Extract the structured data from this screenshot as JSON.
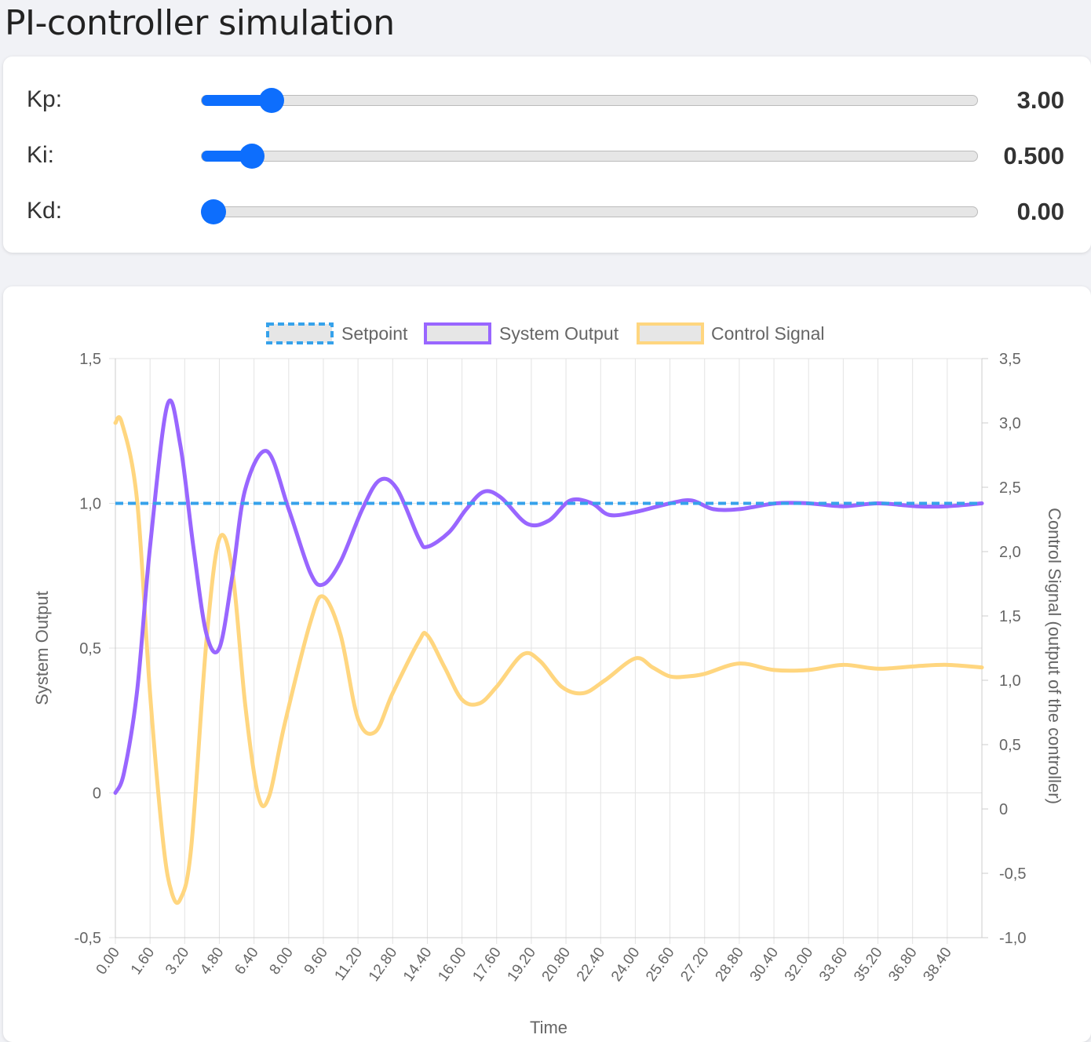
{
  "page": {
    "title": "PI-controller simulation"
  },
  "sliders": [
    {
      "label": "Kp:",
      "value_text": "3.00",
      "fraction": 0.09
    },
    {
      "label": "Ki:",
      "value_text": "0.500",
      "fraction": 0.065
    },
    {
      "label": "Kd:",
      "value_text": "0.00",
      "fraction": 0.015
    }
  ],
  "colors": {
    "setpoint": "#36a2eb",
    "output": "#9966ff",
    "control": "#ffd67f",
    "accent": "#0d6efd"
  },
  "chart_data": {
    "type": "line",
    "legend_position": "top",
    "xlabel": "Time",
    "ylabel_left": "System Output",
    "ylabel_right": "Control Signal (output of the controller)",
    "x_range": [
      0,
      40
    ],
    "x_tick_labels": [
      "0.00",
      "1.60",
      "3.20",
      "4.80",
      "6.40",
      "8.00",
      "9.60",
      "11.20",
      "12.80",
      "14.40",
      "16.00",
      "17.60",
      "19.20",
      "20.80",
      "22.40",
      "24.00",
      "25.60",
      "27.20",
      "28.80",
      "30.40",
      "32.00",
      "33.60",
      "35.20",
      "36.80",
      "38.40"
    ],
    "y_left": {
      "range": [
        -0.5,
        1.5
      ],
      "ticks": [
        -0.5,
        0,
        0.5,
        1.0,
        1.5
      ],
      "tick_labels": [
        "-0,5",
        "0",
        "0,5",
        "1,0",
        "1,5"
      ]
    },
    "y_right": {
      "range": [
        -1.0,
        3.5
      ],
      "ticks": [
        -1.0,
        -0.5,
        0,
        0.5,
        1.0,
        1.5,
        2.0,
        2.5,
        3.0,
        3.5
      ],
      "tick_labels": [
        "-1,0",
        "-0,5",
        "0",
        "0,5",
        "1,0",
        "1,5",
        "2,0",
        "2,5",
        "3,0",
        "3,5"
      ]
    },
    "series": [
      {
        "name": "Setpoint",
        "axis": "left",
        "style": "dashed",
        "points": [
          [
            0,
            1.0
          ],
          [
            40,
            1.0
          ]
        ]
      },
      {
        "name": "System Output",
        "axis": "left",
        "points": [
          [
            0,
            0.0
          ],
          [
            0.4,
            0.07
          ],
          [
            1.0,
            0.35
          ],
          [
            1.6,
            0.85
          ],
          [
            2.4,
            1.34
          ],
          [
            3.0,
            1.2
          ],
          [
            3.6,
            0.85
          ],
          [
            4.2,
            0.55
          ],
          [
            4.8,
            0.5
          ],
          [
            5.4,
            0.75
          ],
          [
            6.0,
            1.05
          ],
          [
            7.0,
            1.18
          ],
          [
            8.0,
            0.98
          ],
          [
            9.0,
            0.76
          ],
          [
            9.6,
            0.72
          ],
          [
            10.4,
            0.8
          ],
          [
            11.4,
            0.98
          ],
          [
            12.2,
            1.08
          ],
          [
            13.0,
            1.05
          ],
          [
            14.0,
            0.88
          ],
          [
            14.4,
            0.85
          ],
          [
            15.4,
            0.9
          ],
          [
            16.2,
            0.98
          ],
          [
            17.0,
            1.04
          ],
          [
            17.8,
            1.02
          ],
          [
            19.0,
            0.93
          ],
          [
            20.0,
            0.94
          ],
          [
            21.0,
            1.01
          ],
          [
            22.0,
            1.0
          ],
          [
            22.8,
            0.96
          ],
          [
            24.0,
            0.97
          ],
          [
            25.6,
            1.0
          ],
          [
            26.6,
            1.01
          ],
          [
            27.6,
            0.98
          ],
          [
            28.8,
            0.98
          ],
          [
            30.5,
            1.0
          ],
          [
            32.0,
            1.0
          ],
          [
            33.6,
            0.99
          ],
          [
            35.2,
            1.0
          ],
          [
            37.0,
            0.99
          ],
          [
            38.4,
            0.99
          ],
          [
            40,
            1.0
          ]
        ]
      },
      {
        "name": "Control Signal",
        "axis": "right",
        "points": [
          [
            0,
            3.0
          ],
          [
            0.3,
            3.0
          ],
          [
            1.0,
            2.4
          ],
          [
            1.6,
            0.9
          ],
          [
            2.2,
            -0.25
          ],
          [
            2.6,
            -0.65
          ],
          [
            3.0,
            -0.7
          ],
          [
            3.5,
            -0.3
          ],
          [
            4.2,
            1.3
          ],
          [
            4.8,
            2.1
          ],
          [
            5.4,
            1.85
          ],
          [
            6.0,
            0.8
          ],
          [
            6.6,
            0.1
          ],
          [
            7.1,
            0.1
          ],
          [
            7.8,
            0.65
          ],
          [
            9.0,
            1.45
          ],
          [
            9.6,
            1.65
          ],
          [
            10.4,
            1.35
          ],
          [
            11.2,
            0.7
          ],
          [
            12.0,
            0.6
          ],
          [
            12.8,
            0.9
          ],
          [
            14.0,
            1.3
          ],
          [
            14.4,
            1.35
          ],
          [
            15.2,
            1.1
          ],
          [
            16.0,
            0.85
          ],
          [
            16.8,
            0.82
          ],
          [
            17.6,
            0.95
          ],
          [
            18.8,
            1.2
          ],
          [
            19.6,
            1.15
          ],
          [
            20.6,
            0.95
          ],
          [
            21.6,
            0.9
          ],
          [
            22.6,
            1.0
          ],
          [
            24.0,
            1.17
          ],
          [
            24.8,
            1.1
          ],
          [
            25.6,
            1.03
          ],
          [
            26.4,
            1.03
          ],
          [
            27.2,
            1.05
          ],
          [
            28.8,
            1.13
          ],
          [
            30.4,
            1.08
          ],
          [
            32.0,
            1.08
          ],
          [
            33.6,
            1.12
          ],
          [
            35.2,
            1.09
          ],
          [
            37.0,
            1.11
          ],
          [
            38.4,
            1.12
          ],
          [
            40,
            1.1
          ]
        ]
      }
    ]
  }
}
